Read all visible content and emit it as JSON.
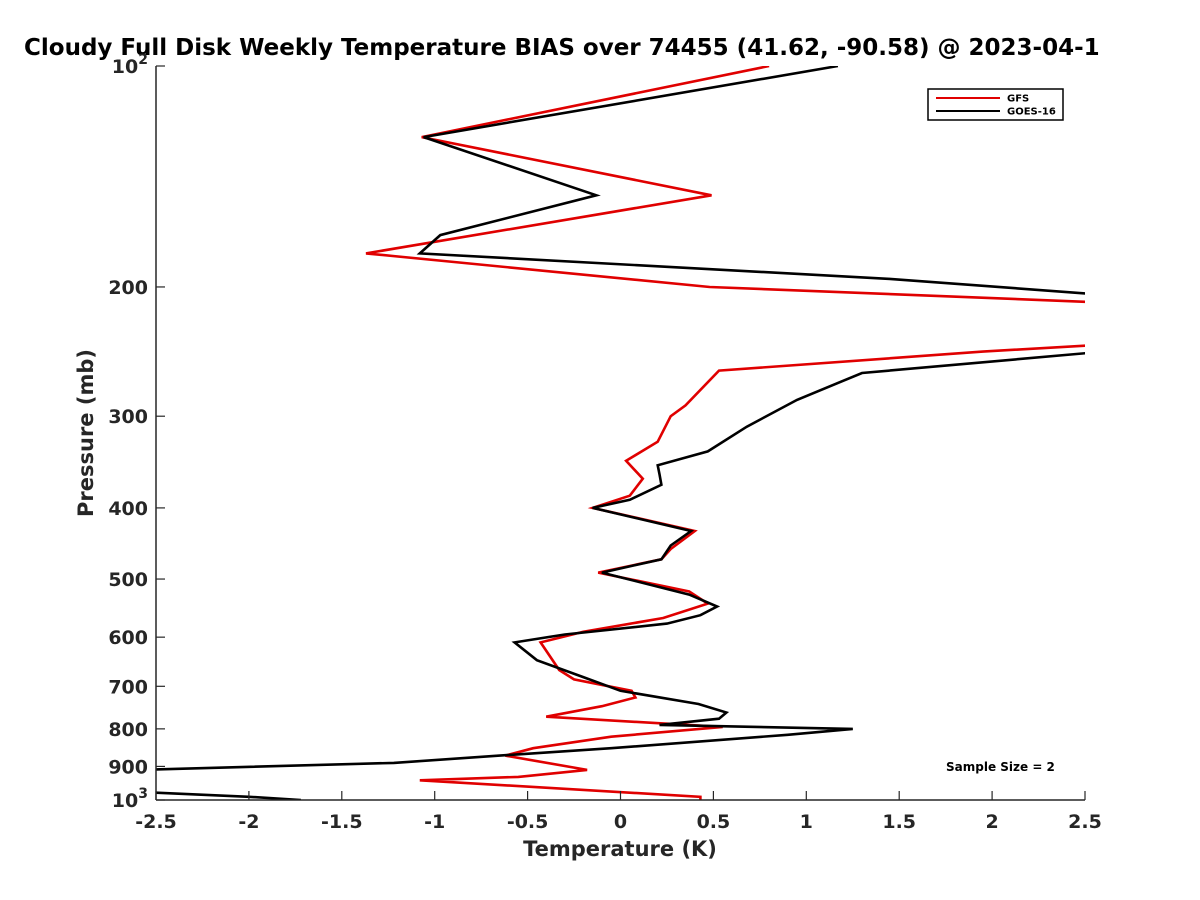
{
  "chart_data": {
    "type": "line",
    "title": "Cloudy Full Disk Weekly Temperature BIAS over 74455 (41.62, -90.58) @ 2023-04-1",
    "xlabel": "Temperature (K)",
    "ylabel": "Pressure (mb)",
    "xlim": [
      -2.5,
      2.5
    ],
    "ylim": [
      100,
      1000
    ],
    "yscale": "log",
    "y_reversed": true,
    "grid": false,
    "legend_position": "top-right",
    "x_ticks": [
      -2.5,
      -2,
      -1.5,
      -1,
      -0.5,
      0,
      0.5,
      1,
      1.5,
      2,
      2.5
    ],
    "x_tick_labels": [
      "-2.5",
      "-2",
      "-1.5",
      "-1",
      "-0.5",
      "0",
      "0.5",
      "1",
      "1.5",
      "2",
      "2.5"
    ],
    "y_ticks": [
      100,
      200,
      300,
      400,
      500,
      600,
      700,
      800,
      900,
      1000
    ],
    "y_tick_labels": [
      {
        "base": "10",
        "exp": "2"
      },
      {
        "base": "200",
        "exp": ""
      },
      {
        "base": "300",
        "exp": ""
      },
      {
        "base": "400",
        "exp": ""
      },
      {
        "base": "500",
        "exp": ""
      },
      {
        "base": "600",
        "exp": ""
      },
      {
        "base": "700",
        "exp": ""
      },
      {
        "base": "800",
        "exp": ""
      },
      {
        "base": "900",
        "exp": ""
      },
      {
        "base": "10",
        "exp": "3"
      }
    ],
    "annotation": "Sample Size = 2",
    "series": [
      {
        "name": "GFS",
        "color": "#e00000",
        "points": [
          [
            0.8,
            100
          ],
          [
            -1.07,
            125
          ],
          [
            0.49,
            150
          ],
          [
            -1.37,
            180
          ],
          [
            0.48,
            200
          ],
          [
            2.6,
            210
          ],
          [
            2.55,
            240
          ],
          [
            1.95,
            245
          ],
          [
            0.53,
            260
          ],
          [
            0.35,
            290
          ],
          [
            0.27,
            300
          ],
          [
            0.2,
            325
          ],
          [
            0.03,
            345
          ],
          [
            0.12,
            365
          ],
          [
            0.05,
            385
          ],
          [
            -0.15,
            400
          ],
          [
            0.4,
            430
          ],
          [
            0.27,
            455
          ],
          [
            0.22,
            470
          ],
          [
            -0.12,
            490
          ],
          [
            0.37,
            520
          ],
          [
            0.47,
            540
          ],
          [
            0.23,
            565
          ],
          [
            -0.2,
            590
          ],
          [
            -0.43,
            610
          ],
          [
            -0.33,
            665
          ],
          [
            -0.25,
            685
          ],
          [
            0.06,
            710
          ],
          [
            0.08,
            725
          ],
          [
            -0.1,
            745
          ],
          [
            -0.4,
            770
          ],
          [
            0.55,
            795
          ],
          [
            -0.05,
            820
          ],
          [
            -0.47,
            850
          ],
          [
            -0.62,
            870
          ],
          [
            -0.18,
            910
          ],
          [
            -0.55,
            930
          ],
          [
            -1.08,
            940
          ],
          [
            0.43,
            990
          ],
          [
            0.43,
            1000
          ]
        ]
      },
      {
        "name": "GOES-16",
        "color": "#000000",
        "points": [
          [
            1.17,
            100
          ],
          [
            -1.06,
            125
          ],
          [
            -0.13,
            150
          ],
          [
            -0.97,
            170
          ],
          [
            -1.08,
            180
          ],
          [
            1.45,
            195
          ],
          [
            2.6,
            205
          ],
          [
            2.6,
            245
          ],
          [
            1.3,
            262
          ],
          [
            0.95,
            285
          ],
          [
            0.68,
            310
          ],
          [
            0.47,
            335
          ],
          [
            0.2,
            350
          ],
          [
            0.21,
            360
          ],
          [
            0.22,
            372
          ],
          [
            0.05,
            390
          ],
          [
            -0.15,
            400
          ],
          [
            0.38,
            430
          ],
          [
            0.27,
            450
          ],
          [
            0.22,
            470
          ],
          [
            -0.1,
            490
          ],
          [
            0.37,
            525
          ],
          [
            0.52,
            545
          ],
          [
            0.43,
            560
          ],
          [
            0.25,
            575
          ],
          [
            -0.3,
            595
          ],
          [
            -0.57,
            610
          ],
          [
            -0.45,
            645
          ],
          [
            -0.2,
            680
          ],
          [
            0.0,
            710
          ],
          [
            0.42,
            740
          ],
          [
            0.57,
            760
          ],
          [
            0.53,
            775
          ],
          [
            0.21,
            790
          ],
          [
            1.25,
            800
          ],
          [
            0.9,
            815
          ],
          [
            -0.05,
            850
          ],
          [
            -0.65,
            870
          ],
          [
            -1.22,
            890
          ],
          [
            -2.6,
            910
          ],
          [
            -2.6,
            975
          ],
          [
            -2.0,
            990
          ],
          [
            -1.72,
            1000
          ]
        ]
      }
    ]
  }
}
